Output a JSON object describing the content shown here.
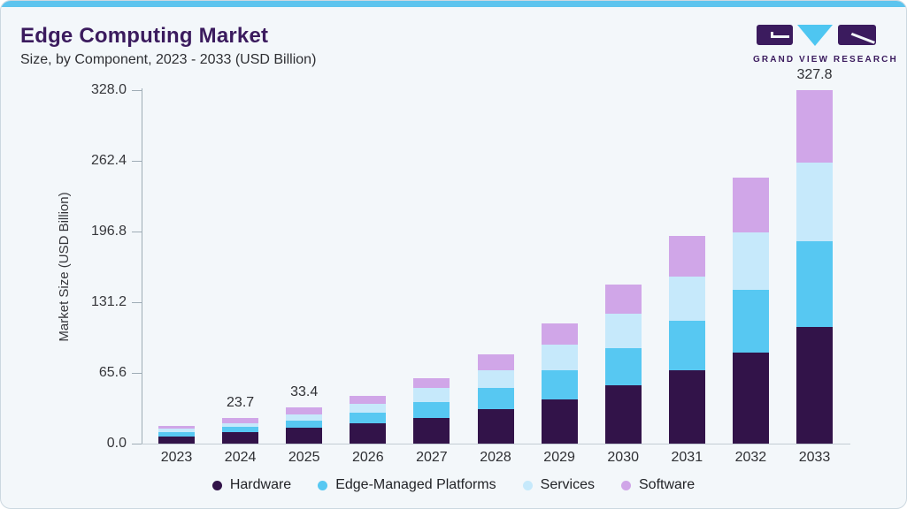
{
  "header": {
    "title": "Edge Computing Market",
    "subtitle": "Size, by Component, 2023 - 2033 (USD Billion)"
  },
  "brand": {
    "name": "GRAND VIEW RESEARCH"
  },
  "colors": {
    "accent_strip": "#5dc4ee",
    "title_purple": "#3b1b5e",
    "card_background": "#f3f7fa",
    "card_border": "#ccd8e0",
    "axis_line": "#9fadb6",
    "baseline": "#c3cdd4",
    "hardware": "#321349",
    "edge_managed_platforms": "#57c8f2",
    "services": "#c6e9fb",
    "software": "#d0a6e8",
    "logo_triangle": "#4ec6f1"
  },
  "chart_data": {
    "type": "bar",
    "stacked": true,
    "title": "Edge Computing Market",
    "subtitle": "Size, by Component, 2023 - 2033 (USD Billion)",
    "categories": [
      "2023",
      "2024",
      "2025",
      "2026",
      "2027",
      "2028",
      "2029",
      "2030",
      "2031",
      "2032",
      "2033"
    ],
    "series": [
      {
        "name": "Hardware",
        "color": "#321349",
        "values": [
          6.7,
          10.3,
          14.6,
          18.6,
          23.5,
          32.0,
          41.0,
          53.9,
          67.8,
          84.2,
          108.3
        ]
      },
      {
        "name": "Edge-Managed Platforms",
        "color": "#57c8f2",
        "values": [
          4.2,
          5.0,
          6.9,
          10.3,
          14.8,
          19.7,
          27.4,
          34.7,
          46.4,
          58.7,
          79.5
        ]
      },
      {
        "name": "Services",
        "color": "#c6e9fb",
        "values": [
          2.9,
          3.9,
          5.8,
          8.2,
          13.6,
          16.4,
          23.8,
          32.3,
          40.5,
          52.8,
          73.0
        ]
      },
      {
        "name": "Software",
        "color": "#d0a6e8",
        "values": [
          3.0,
          4.5,
          6.1,
          7.4,
          9.0,
          15.1,
          19.1,
          26.5,
          38.0,
          51.1,
          67.0
        ]
      }
    ],
    "totals": [
      16.8,
      23.7,
      33.4,
      44.5,
      60.9,
      83.2,
      111.3,
      147.4,
      192.7,
      246.8,
      327.8
    ],
    "bar_total_labels": [
      "",
      "23.7",
      "33.4",
      "",
      "",
      "",
      "",
      "",
      "",
      "",
      "327.8"
    ],
    "ylabel": "Market Size (USD Billion)",
    "xlabel": "",
    "yticks": [
      0.0,
      65.6,
      131.2,
      196.8,
      262.4,
      328.0
    ],
    "ylim": [
      0,
      328
    ],
    "grid": false,
    "legend_position": "bottom"
  }
}
